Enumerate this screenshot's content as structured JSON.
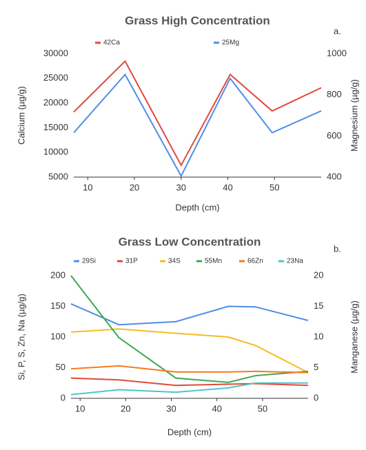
{
  "chart_data": [
    {
      "type": "line",
      "title": "Grass High Concentration",
      "panel_label": "a.",
      "x": [
        7,
        18,
        30,
        40.5,
        49.5,
        60
      ],
      "xlim": [
        7,
        60
      ],
      "xticks": [
        10,
        20,
        30,
        40,
        50
      ],
      "xlabel": "Depth (cm)",
      "ylabel": "Calcium (µg/g)",
      "y2label": "Magnesium (µg/g)",
      "ylim": [
        5000,
        30000
      ],
      "yticks": [
        5000,
        10000,
        15000,
        20000,
        25000,
        30000
      ],
      "y2lim": [
        400,
        1000
      ],
      "y2ticks": [
        400,
        600,
        800,
        1000
      ],
      "grid": false,
      "series": [
        {
          "name": "42Ca",
          "color": "#e0483c",
          "values": [
            18200,
            28500,
            7400,
            25800,
            18400,
            23100
          ]
        },
        {
          "name": "25Mg",
          "color": "#4f8de6",
          "axis": "y2",
          "values": [
            616,
            899,
            405,
            880,
            616,
            722
          ]
        }
      ]
    },
    {
      "type": "line",
      "title": "Grass Low Concentration",
      "panel_label": "b.",
      "x": [
        8,
        18.5,
        31,
        42.5,
        48.5,
        60
      ],
      "xlim": [
        8,
        60
      ],
      "xticks": [
        10,
        20,
        30,
        40,
        50
      ],
      "xlabel": "Depth (cm)",
      "ylabel": "Si, P, S, Zn, Na (µg/g)",
      "y2label": "Manganese (µg/g)",
      "ylim": [
        0,
        200
      ],
      "yticks": [
        0,
        50,
        100,
        150,
        200
      ],
      "y2lim": [
        0,
        20
      ],
      "y2ticks": [
        0,
        5,
        10,
        15,
        20
      ],
      "grid": false,
      "series": [
        {
          "name": "29Si",
          "color": "#4f8de6",
          "values": [
            154,
            120,
            125,
            150,
            149,
            127
          ]
        },
        {
          "name": "31P",
          "color": "#e0483c",
          "values": [
            33,
            30,
            21,
            23,
            24,
            21
          ]
        },
        {
          "name": "34S",
          "color": "#f7bb21",
          "values": [
            108,
            113,
            106,
            100,
            86,
            42
          ]
        },
        {
          "name": "55Mn",
          "color": "#3ba94f",
          "axis": "y2",
          "values": [
            20,
            9.9,
            3.3,
            2.6,
            3.7,
            4.4
          ]
        },
        {
          "name": "66Zn",
          "color": "#f6791f",
          "values": [
            48,
            53,
            43,
            43,
            44,
            42
          ]
        },
        {
          "name": "23Na",
          "color": "#4ec4c9",
          "values": [
            6,
            14,
            10,
            17,
            25,
            25
          ]
        }
      ]
    }
  ]
}
